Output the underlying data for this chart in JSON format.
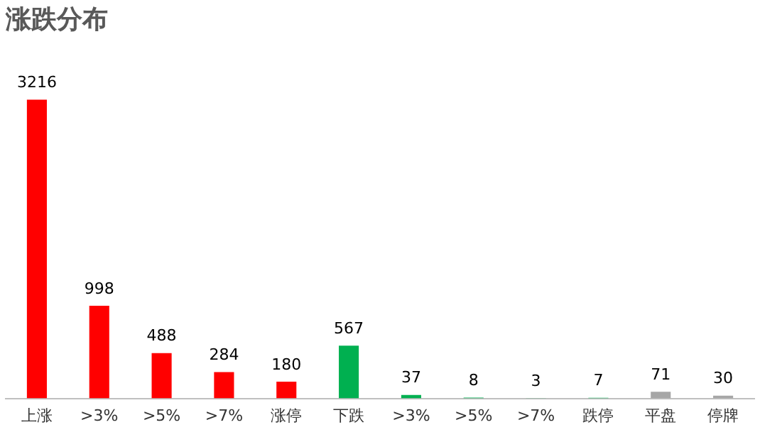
{
  "chart_data": {
    "type": "bar",
    "title": "涨跌分布",
    "categories": [
      "上涨",
      ">3%",
      ">5%",
      ">7%",
      "涨停",
      "下跌",
      ">3%",
      ">5%",
      ">7%",
      "跌停",
      "平盘",
      "停牌"
    ],
    "values": [
      3216,
      998,
      488,
      284,
      180,
      567,
      37,
      8,
      3,
      7,
      71,
      30
    ],
    "colors": [
      "#ff0000",
      "#ff0000",
      "#ff0000",
      "#ff0000",
      "#ff0000",
      "#00b050",
      "#00b050",
      "#00b050",
      "#00b050",
      "#00b050",
      "#a6a6a6",
      "#a6a6a6"
    ],
    "data_labels": true,
    "grid": false,
    "legend": false,
    "tick_labels": "x"
  }
}
